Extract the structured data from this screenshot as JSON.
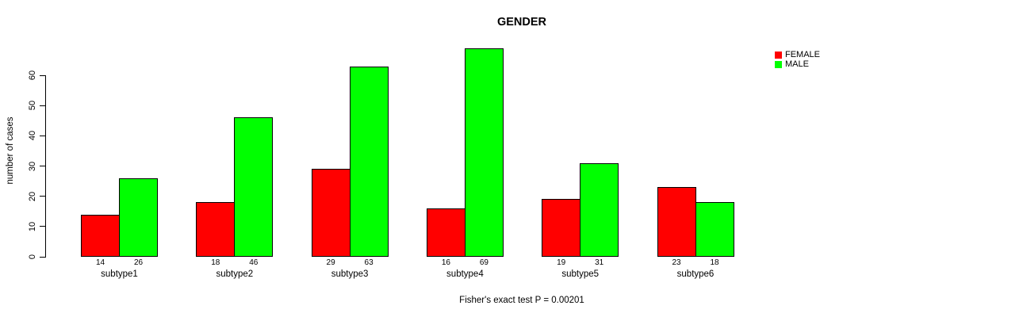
{
  "chart_data": {
    "type": "bar",
    "title": "GENDER",
    "xlabel": "",
    "ylabel": "number of cases",
    "ylim": [
      0,
      70
    ],
    "yticks": [
      0,
      10,
      20,
      30,
      40,
      50,
      60
    ],
    "grid": false,
    "legend_position": "right",
    "annotation": "Fisher's exact test P = 0.00201",
    "categories": [
      "subtype1",
      "subtype2",
      "subtype3",
      "subtype4",
      "subtype5",
      "subtype6"
    ],
    "series": [
      {
        "name": "FEMALE",
        "color": "#FF0000",
        "values": [
          14,
          18,
          29,
          16,
          19,
          23
        ]
      },
      {
        "name": "MALE",
        "color": "#00FF00",
        "values": [
          26,
          46,
          63,
          69,
          31,
          18
        ]
      }
    ],
    "bar_value_labels": true,
    "colors": {
      "bar_border": "#000000",
      "axis": "#000000",
      "background": "#FFFFFF"
    }
  }
}
